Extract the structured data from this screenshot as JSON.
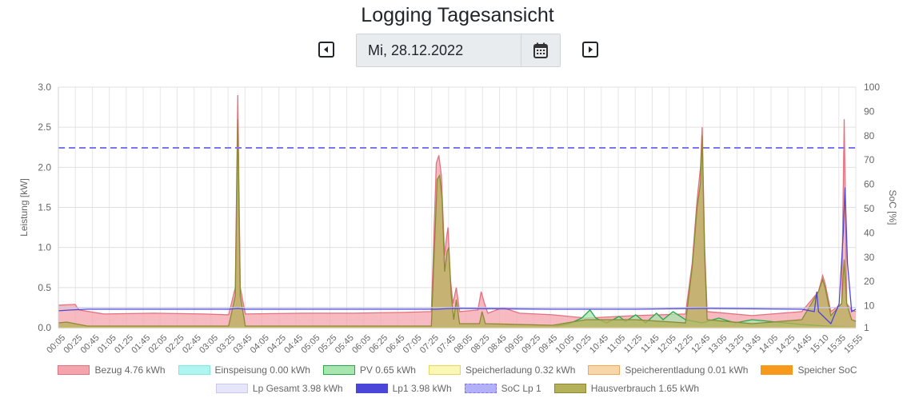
{
  "page": {
    "title": "Logging Tagesansicht"
  },
  "date_picker": {
    "value": "Mi, 28.12.2022"
  },
  "chart_data": {
    "type": "area",
    "title": "",
    "ylabel": "Leistung [kW]",
    "y2label": "SoC [%]",
    "ylim": [
      0,
      3
    ],
    "y2lim": [
      1,
      100
    ],
    "yticks": [
      "0.0",
      "0.5",
      "1.0",
      "1.5",
      "2.0",
      "2.5",
      "3.0"
    ],
    "y2ticks": [
      "1",
      "10",
      "20",
      "30",
      "40",
      "50",
      "60",
      "70",
      "80",
      "90",
      "100"
    ],
    "grid": true,
    "legend_position": "bottom",
    "x_start_minutes": 5,
    "x_end_minutes": 965,
    "xticks": [
      "00:05",
      "00:25",
      "00:45",
      "01:05",
      "01:25",
      "01:45",
      "02:05",
      "02:25",
      "02:45",
      "03:05",
      "03:25",
      "03:45",
      "04:05",
      "04:25",
      "04:45",
      "05:05",
      "05:25",
      "05:45",
      "06:05",
      "06:25",
      "06:45",
      "07:05",
      "07:25",
      "07:45",
      "08:05",
      "08:25",
      "08:45",
      "09:05",
      "09:25",
      "09:45",
      "10:05",
      "10:25",
      "10:45",
      "11:05",
      "11:25",
      "11:45",
      "12:05",
      "12:25",
      "12:45",
      "13:05",
      "13:25",
      "13:45",
      "14:05",
      "14:25",
      "14:45",
      "15:10",
      "15:35",
      "15:55"
    ],
    "series": [
      {
        "name": "Bezug 4.76 kWh",
        "color": "#f5a3ac",
        "stroke": "#e5707e",
        "axis": "left",
        "fill": true,
        "points": [
          [
            5,
            0.28
          ],
          [
            25,
            0.29
          ],
          [
            30,
            0.22
          ],
          [
            60,
            0.17
          ],
          [
            120,
            0.18
          ],
          [
            180,
            0.17
          ],
          [
            210,
            0.16
          ],
          [
            218,
            0.5
          ],
          [
            221,
            2.9
          ],
          [
            224,
            0.5
          ],
          [
            230,
            0.17
          ],
          [
            300,
            0.18
          ],
          [
            360,
            0.18
          ],
          [
            420,
            0.19
          ],
          [
            454,
            0.2
          ],
          [
            456,
            0.8
          ],
          [
            460,
            2.05
          ],
          [
            463,
            2.15
          ],
          [
            466,
            1.9
          ],
          [
            470,
            0.9
          ],
          [
            472,
            1.1
          ],
          [
            474,
            1.25
          ],
          [
            477,
            0.6
          ],
          [
            480,
            0.3
          ],
          [
            484,
            0.5
          ],
          [
            488,
            0.2
          ],
          [
            510,
            0.22
          ],
          [
            514,
            0.45
          ],
          [
            518,
            0.3
          ],
          [
            522,
            0.18
          ],
          [
            540,
            0.25
          ],
          [
            560,
            0.18
          ],
          [
            600,
            0.16
          ],
          [
            640,
            0.12
          ],
          [
            700,
            0.15
          ],
          [
            760,
            0.17
          ],
          [
            768,
            0.8
          ],
          [
            774,
            1.6
          ],
          [
            778,
            2.0
          ],
          [
            780,
            2.5
          ],
          [
            783,
            1.0
          ],
          [
            786,
            0.2
          ],
          [
            840,
            0.15
          ],
          [
            900,
            0.2
          ],
          [
            920,
            0.45
          ],
          [
            925,
            0.65
          ],
          [
            928,
            0.55
          ],
          [
            935,
            0.2
          ],
          [
            948,
            0.3
          ],
          [
            951,
            2.6
          ],
          [
            954,
            0.3
          ],
          [
            960,
            0.22
          ],
          [
            965,
            0.2
          ]
        ]
      },
      {
        "name": "Einspeisung 0.00 kWh",
        "color": "#aff5f0",
        "stroke": "#7fe8e0",
        "axis": "left",
        "fill": true,
        "points": [
          [
            5,
            0
          ],
          [
            965,
            0
          ]
        ]
      },
      {
        "name": "PV 0.65 kWh",
        "color": "#a8e6b0",
        "stroke": "#28a745",
        "axis": "left",
        "fill": true,
        "points": [
          [
            5,
            0.01
          ],
          [
            600,
            0.01
          ],
          [
            620,
            0.05
          ],
          [
            635,
            0.12
          ],
          [
            645,
            0.22
          ],
          [
            652,
            0.12
          ],
          [
            665,
            0.06
          ],
          [
            680,
            0.14
          ],
          [
            688,
            0.08
          ],
          [
            700,
            0.16
          ],
          [
            712,
            0.06
          ],
          [
            725,
            0.18
          ],
          [
            733,
            0.1
          ],
          [
            745,
            0.2
          ],
          [
            760,
            0.1
          ],
          [
            780,
            0.06
          ],
          [
            800,
            0.12
          ],
          [
            820,
            0.06
          ],
          [
            840,
            0.1
          ],
          [
            860,
            0.08
          ],
          [
            880,
            0.06
          ],
          [
            900,
            0.04
          ],
          [
            930,
            0.02
          ],
          [
            965,
            0.01
          ]
        ]
      },
      {
        "name": "Speicherladung 0.32 kWh",
        "color": "#fbf7b5",
        "stroke": "#e6d65a",
        "axis": "left",
        "fill": true,
        "points": [
          [
            5,
            0.01
          ],
          [
            965,
            0.01
          ]
        ]
      },
      {
        "name": "Speicherentladung 0.01 kWh",
        "color": "#f9d6a8",
        "stroke": "#f4a75a",
        "axis": "left",
        "fill": true,
        "points": [
          [
            5,
            0
          ],
          [
            965,
            0
          ]
        ]
      },
      {
        "name": "Speicher SoC",
        "color": "#fd7e14",
        "stroke": "#f79a1c",
        "axis": "right",
        "fill": false,
        "solid_swatch": true,
        "points": [
          [
            5,
            1
          ],
          [
            965,
            1
          ]
        ]
      },
      {
        "name": "Lp Gesamt 3.98 kWh",
        "color": "#e6e6fa",
        "stroke": "#c9c9f0",
        "axis": "left",
        "fill": false,
        "points": [
          [
            5,
            0.25
          ],
          [
            965,
            0.25
          ]
        ]
      },
      {
        "name": "Lp1 3.98 kWh",
        "color": "#5a55f0",
        "stroke": "#4b46d8",
        "axis": "left",
        "fill": false,
        "solid_swatch": true,
        "points": [
          [
            5,
            0.21
          ],
          [
            20,
            0.22
          ],
          [
            40,
            0.23
          ],
          [
            100,
            0.23
          ],
          [
            210,
            0.23
          ],
          [
            221,
            0.24
          ],
          [
            230,
            0.23
          ],
          [
            400,
            0.23
          ],
          [
            460,
            0.23
          ],
          [
            480,
            0.24
          ],
          [
            600,
            0.23
          ],
          [
            700,
            0.23
          ],
          [
            780,
            0.24
          ],
          [
            900,
            0.23
          ],
          [
            915,
            0.2
          ],
          [
            918,
            0.45
          ],
          [
            920,
            0.2
          ],
          [
            935,
            0.05
          ],
          [
            945,
            0.3
          ],
          [
            950,
            1.2
          ],
          [
            952,
            1.75
          ],
          [
            955,
            0.8
          ],
          [
            960,
            0.2
          ],
          [
            965,
            0.23
          ]
        ]
      },
      {
        "name": "SoC Lp 1",
        "color": "#b3b0f7",
        "stroke": "#7b76ef",
        "axis": "right",
        "fill": false,
        "dashed": true,
        "points": [
          [
            5,
            75
          ],
          [
            965,
            75
          ]
        ]
      },
      {
        "name": "Hausverbrauch 1.65 kWh",
        "color": "#b5b05a",
        "stroke": "#8a8a35",
        "axis": "left",
        "fill": true,
        "points": [
          [
            5,
            0.06
          ],
          [
            15,
            0.07
          ],
          [
            25,
            0.05
          ],
          [
            40,
            0.02
          ],
          [
            210,
            0.02
          ],
          [
            218,
            0.4
          ],
          [
            221,
            2.6
          ],
          [
            224,
            0.4
          ],
          [
            230,
            0.02
          ],
          [
            454,
            0.02
          ],
          [
            457,
            0.8
          ],
          [
            461,
            1.85
          ],
          [
            464,
            1.9
          ],
          [
            467,
            1.6
          ],
          [
            470,
            0.7
          ],
          [
            473,
            0.95
          ],
          [
            475,
            1.0
          ],
          [
            478,
            0.4
          ],
          [
            481,
            0.1
          ],
          [
            484,
            0.35
          ],
          [
            488,
            0.05
          ],
          [
            512,
            0.05
          ],
          [
            515,
            0.2
          ],
          [
            519,
            0.05
          ],
          [
            600,
            0.03
          ],
          [
            640,
            0.1
          ],
          [
            700,
            0.1
          ],
          [
            760,
            0.06
          ],
          [
            768,
            0.75
          ],
          [
            774,
            1.5
          ],
          [
            778,
            1.8
          ],
          [
            780,
            2.4
          ],
          [
            783,
            0.9
          ],
          [
            786,
            0.1
          ],
          [
            840,
            0.05
          ],
          [
            900,
            0.1
          ],
          [
            920,
            0.45
          ],
          [
            925,
            0.6
          ],
          [
            928,
            0.5
          ],
          [
            935,
            0.15
          ],
          [
            948,
            0.3
          ],
          [
            951,
            0.85
          ],
          [
            954,
            0.3
          ],
          [
            960,
            0.1
          ],
          [
            965,
            0.08
          ]
        ]
      }
    ]
  }
}
